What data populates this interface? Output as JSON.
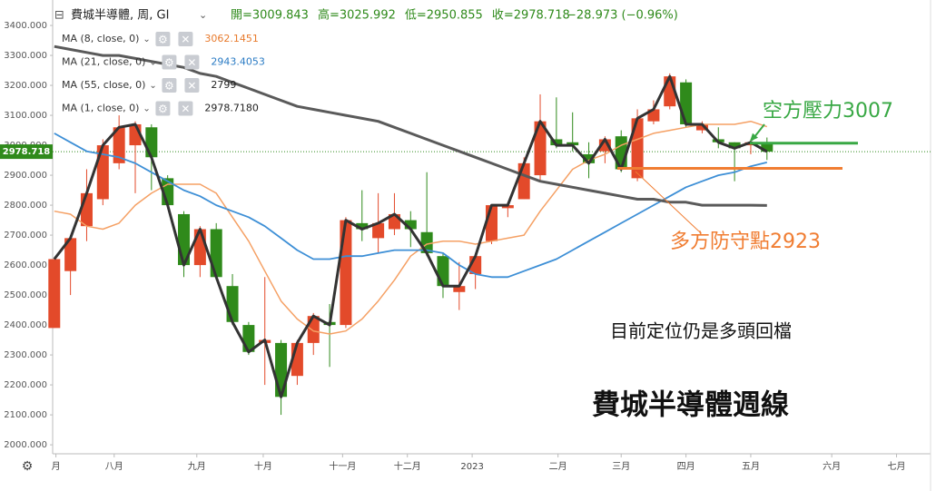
{
  "chart_data": {
    "type": "candlestick",
    "header": {
      "title": "費城半導體, 周, GI",
      "ohlc": [
        "開=3009.843",
        "高=3025.992",
        "低=2950.855",
        "收=2978.718"
      ],
      "change": "−28.973 (−0.96%)"
    },
    "up_color": "#e34a2a",
    "down_color": "#2f8a1b",
    "x": [
      0,
      1,
      2,
      3,
      4,
      5,
      6,
      7,
      8,
      9,
      10,
      11,
      12,
      13,
      14,
      15,
      16,
      17,
      18,
      19,
      20,
      21,
      22,
      23,
      24,
      25,
      26,
      27,
      28,
      29,
      30,
      31,
      32,
      33,
      34,
      35,
      36,
      37,
      38,
      39,
      40,
      41,
      42,
      43,
      44
    ],
    "open": [
      2390,
      2580,
      2730,
      2820,
      2940,
      3000,
      3060,
      2890,
      2770,
      2600,
      2720,
      2530,
      2400,
      2340,
      2340,
      2230,
      2340,
      2410,
      2400,
      2740,
      2690,
      2720,
      2750,
      2710,
      2630,
      2510,
      2570,
      2680,
      2790,
      2820,
      2900,
      3020,
      3010,
      2970,
      2980,
      3030,
      2890,
      3080,
      3130,
      3210,
      3050,
      3020,
      3010,
      3000,
      3009.843
    ],
    "high": [
      2620,
      2700,
      2920,
      3020,
      3100,
      3080,
      3070,
      2900,
      2780,
      2730,
      2740,
      2570,
      2410,
      2560,
      2350,
      2350,
      2440,
      2470,
      2760,
      2850,
      2840,
      2840,
      2780,
      2910,
      2640,
      2610,
      2640,
      2800,
      2810,
      2960,
      3170,
      3160,
      3110,
      3010,
      3030,
      3050,
      3120,
      3150,
      3240,
      3220,
      3080,
      3060,
      3010,
      3020,
      3025.992
    ],
    "low": [
      2390,
      2500,
      2680,
      2800,
      2920,
      2840,
      2850,
      2790,
      2560,
      2560,
      2550,
      2400,
      2300,
      2200,
      2100,
      2200,
      2300,
      2260,
      2390,
      2680,
      2640,
      2700,
      2660,
      2630,
      2490,
      2450,
      2520,
      2670,
      2760,
      2820,
      2880,
      2990,
      2980,
      2890,
      2940,
      2910,
      2880,
      3070,
      3120,
      3060,
      3040,
      2990,
      2880,
      2970,
      2950.855
    ],
    "close": [
      2620,
      2690,
      2840,
      3000,
      3060,
      3070,
      2960,
      2800,
      2600,
      2720,
      2560,
      2410,
      2310,
      2350,
      2160,
      2340,
      2430,
      2400,
      2750,
      2720,
      2740,
      2770,
      2720,
      2640,
      2530,
      2530,
      2630,
      2800,
      2800,
      2940,
      3080,
      3000,
      3000,
      2940,
      3020,
      2920,
      3090,
      3120,
      3230,
      3070,
      3070,
      3010,
      2990,
      3010,
      2978.718
    ],
    "ma": [
      {
        "name": "MA (8, close, 0)",
        "legend_value": "3062.1451",
        "color": "#f5a064",
        "legend_color": "#e87a2c",
        "width": 1.5,
        "values": [
          2780,
          2770,
          2730,
          2720,
          2740,
          2800,
          2840,
          2870,
          2870,
          2870,
          2840,
          2760,
          2680,
          2580,
          2480,
          2420,
          2380,
          2370,
          2380,
          2420,
          2480,
          2550,
          2630,
          2670,
          2680,
          2680,
          2670,
          2680,
          2690,
          2700,
          2780,
          2850,
          2920,
          2950,
          2970,
          3000,
          3020,
          3040,
          3050,
          3060,
          3070,
          3070,
          3070,
          3080,
          3062
        ]
      },
      {
        "name": "MA (21, close, 0)",
        "legend_value": "2943.4053",
        "color": "#3d8fd6",
        "legend_color": "#2a7bc4",
        "width": 1.8,
        "values": [
          3040,
          3010,
          2980,
          2970,
          2960,
          2940,
          2910,
          2880,
          2850,
          2830,
          2800,
          2780,
          2760,
          2730,
          2690,
          2650,
          2620,
          2620,
          2630,
          2630,
          2640,
          2650,
          2650,
          2650,
          2640,
          2600,
          2570,
          2560,
          2560,
          2580,
          2600,
          2620,
          2650,
          2680,
          2710,
          2740,
          2770,
          2800,
          2830,
          2860,
          2880,
          2900,
          2910,
          2930,
          2943
        ]
      },
      {
        "name": "MA (55, close, 0)",
        "legend_value": "2799",
        "color": "#5a5a5a",
        "legend_color": "#222",
        "width": 3,
        "values": [
          3330,
          3320,
          3310,
          3300,
          3300,
          3290,
          3280,
          3270,
          3260,
          3240,
          3230,
          3210,
          3190,
          3170,
          3150,
          3130,
          3120,
          3110,
          3100,
          3090,
          3080,
          3060,
          3040,
          3020,
          3000,
          2980,
          2960,
          2940,
          2920,
          2900,
          2880,
          2870,
          2860,
          2850,
          2840,
          2830,
          2820,
          2820,
          2810,
          2810,
          2800,
          2800,
          2800,
          2800,
          2799
        ]
      },
      {
        "name": "MA (1, close, 0)",
        "legend_value": "2978.7180",
        "color": "#333333",
        "legend_color": "#222",
        "width": 3,
        "values": [
          2620,
          2690,
          2840,
          3000,
          3060,
          3070,
          2960,
          2800,
          2600,
          2720,
          2560,
          2410,
          2310,
          2350,
          2160,
          2340,
          2430,
          2400,
          2750,
          2720,
          2740,
          2770,
          2720,
          2640,
          2530,
          2530,
          2630,
          2800,
          2800,
          2940,
          3080,
          3000,
          3000,
          2940,
          3020,
          2920,
          3090,
          3120,
          3230,
          3070,
          3070,
          3010,
          2990,
          3010,
          2978.718
        ]
      }
    ],
    "last_price": {
      "value": 2978.718,
      "label": "2978.718"
    },
    "ylim": [
      1970,
      3485
    ],
    "yticks": [
      {
        "value": 2000,
        "label": "2000.000"
      },
      {
        "value": 2100,
        "label": "2100.000"
      },
      {
        "value": 2200,
        "label": "2200.000"
      },
      {
        "value": 2300,
        "label": "2300.000"
      },
      {
        "value": 2400,
        "label": "2400.000"
      },
      {
        "value": 2500,
        "label": "2500.000"
      },
      {
        "value": 2600,
        "label": "2600.000"
      },
      {
        "value": 2700,
        "label": "2700.000"
      },
      {
        "value": 2800,
        "label": "2800.000"
      },
      {
        "value": 2900,
        "label": "2900.000"
      },
      {
        "value": 3000,
        "label": "3000.000"
      },
      {
        "value": 3100,
        "label": "3100.000"
      },
      {
        "value": 3200,
        "label": "3200.000"
      },
      {
        "value": 3300,
        "label": "3300.000"
      },
      {
        "value": 3400,
        "label": "3400.000"
      }
    ],
    "xlim": [
      -0.1,
      54.1
    ],
    "xticks": [
      {
        "value": 0.1,
        "label": "月"
      },
      {
        "value": 3.7,
        "label": "八月"
      },
      {
        "value": 8.8,
        "label": "九月"
      },
      {
        "value": 12.9,
        "label": "十月"
      },
      {
        "value": 17.8,
        "label": "十一月"
      },
      {
        "value": 21.8,
        "label": "十二月"
      },
      {
        "value": 25.8,
        "label": "2023"
      },
      {
        "value": 31.1,
        "label": "二月"
      },
      {
        "value": 35,
        "label": "三月"
      },
      {
        "value": 39,
        "label": "四月"
      },
      {
        "value": 43,
        "label": "五月"
      },
      {
        "value": 48,
        "label": "六月"
      },
      {
        "value": 52,
        "label": "七月"
      }
    ],
    "grid": false,
    "levels": [
      {
        "label": "空方壓力3007",
        "value": 3007,
        "color": "#38a844"
      },
      {
        "label": "多方防守點2923",
        "value": 2923,
        "color": "#f07d32"
      }
    ],
    "annotations": [
      "目前定位仍是多頭回檔",
      "費城半導體週線"
    ]
  }
}
